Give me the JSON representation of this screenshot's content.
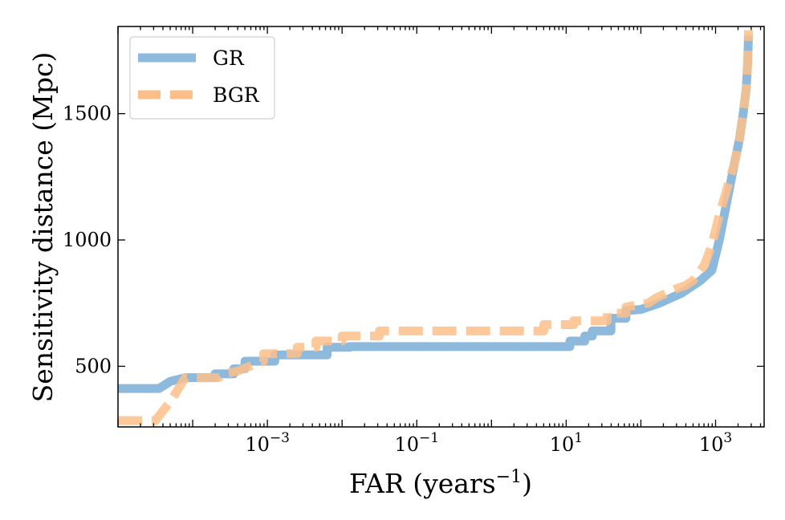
{
  "chart_data": {
    "type": "line",
    "title": "",
    "xlabel": "FAR (years",
    "xlabel_sup": "−1",
    "xlabel_close": ")",
    "ylabel": "Sensitivity distance (Mpc)",
    "x_scale": "log",
    "xlim_log10": [
      -5.0,
      3.65
    ],
    "ylim": [
      260,
      1845
    ],
    "grid": false,
    "legend_position": "top-left",
    "x_ticks": [
      {
        "value": -3,
        "base": "10",
        "exp": "−3"
      },
      {
        "value": -1,
        "base": "10",
        "exp": "−1"
      },
      {
        "value": 1,
        "base": "10",
        "exp": "1"
      },
      {
        "value": 3,
        "base": "10",
        "exp": "3"
      }
    ],
    "y_ticks": [
      {
        "value": 500,
        "label": "500"
      },
      {
        "value": 1000,
        "label": "1000"
      },
      {
        "value": 1500,
        "label": "1500"
      }
    ],
    "series": [
      {
        "name": "GR",
        "color": "#8db9dc",
        "style": "solid",
        "log10_x": [
          -5.0,
          -4.6,
          -4.45,
          -4.3,
          -4.1,
          -3.7,
          -3.7,
          -3.45,
          -3.45,
          -3.3,
          -3.3,
          -2.9,
          -2.9,
          -2.2,
          -2.2,
          -1.9,
          -1.9,
          1.05,
          1.05,
          1.25,
          1.25,
          1.35,
          1.35,
          1.6,
          1.6,
          1.8,
          1.8,
          2.0,
          2.15,
          2.25,
          2.4,
          2.55,
          2.7,
          2.8,
          2.95,
          3.05,
          3.15,
          3.25,
          3.32,
          3.37,
          3.41,
          3.43,
          3.44
        ],
        "distance_mpc": [
          412,
          412,
          412,
          440,
          455,
          455,
          470,
          470,
          490,
          490,
          520,
          520,
          545,
          545,
          575,
          575,
          578,
          578,
          600,
          600,
          620,
          620,
          640,
          640,
          690,
          690,
          720,
          725,
          740,
          750,
          770,
          790,
          820,
          840,
          880,
          1000,
          1150,
          1300,
          1400,
          1500,
          1600,
          1700,
          1810
        ]
      },
      {
        "name": "BGR",
        "color": "#fdbf8a",
        "style": "dashed",
        "log10_x": [
          -5.0,
          -4.6,
          -4.5,
          -4.3,
          -4.1,
          -3.65,
          -3.6,
          -3.4,
          -3.2,
          -3.05,
          -3.05,
          -2.6,
          -2.6,
          -2.35,
          -2.35,
          -2.0,
          -2.0,
          -1.5,
          -1.5,
          0.7,
          0.7,
          1.1,
          1.1,
          1.55,
          1.55,
          1.8,
          1.8,
          2.1,
          2.2,
          2.35,
          2.5,
          2.6,
          2.7,
          2.85,
          2.95,
          3.05,
          3.15,
          3.25,
          3.32,
          3.37,
          3.41,
          3.43,
          3.44
        ],
        "distance_mpc": [
          285,
          285,
          285,
          360,
          455,
          455,
          470,
          480,
          505,
          520,
          550,
          550,
          575,
          575,
          600,
          600,
          620,
          620,
          640,
          640,
          665,
          665,
          680,
          680,
          710,
          710,
          735,
          750,
          770,
          790,
          810,
          820,
          840,
          900,
          980,
          1100,
          1200,
          1300,
          1400,
          1500,
          1600,
          1700,
          1830
        ]
      }
    ]
  }
}
